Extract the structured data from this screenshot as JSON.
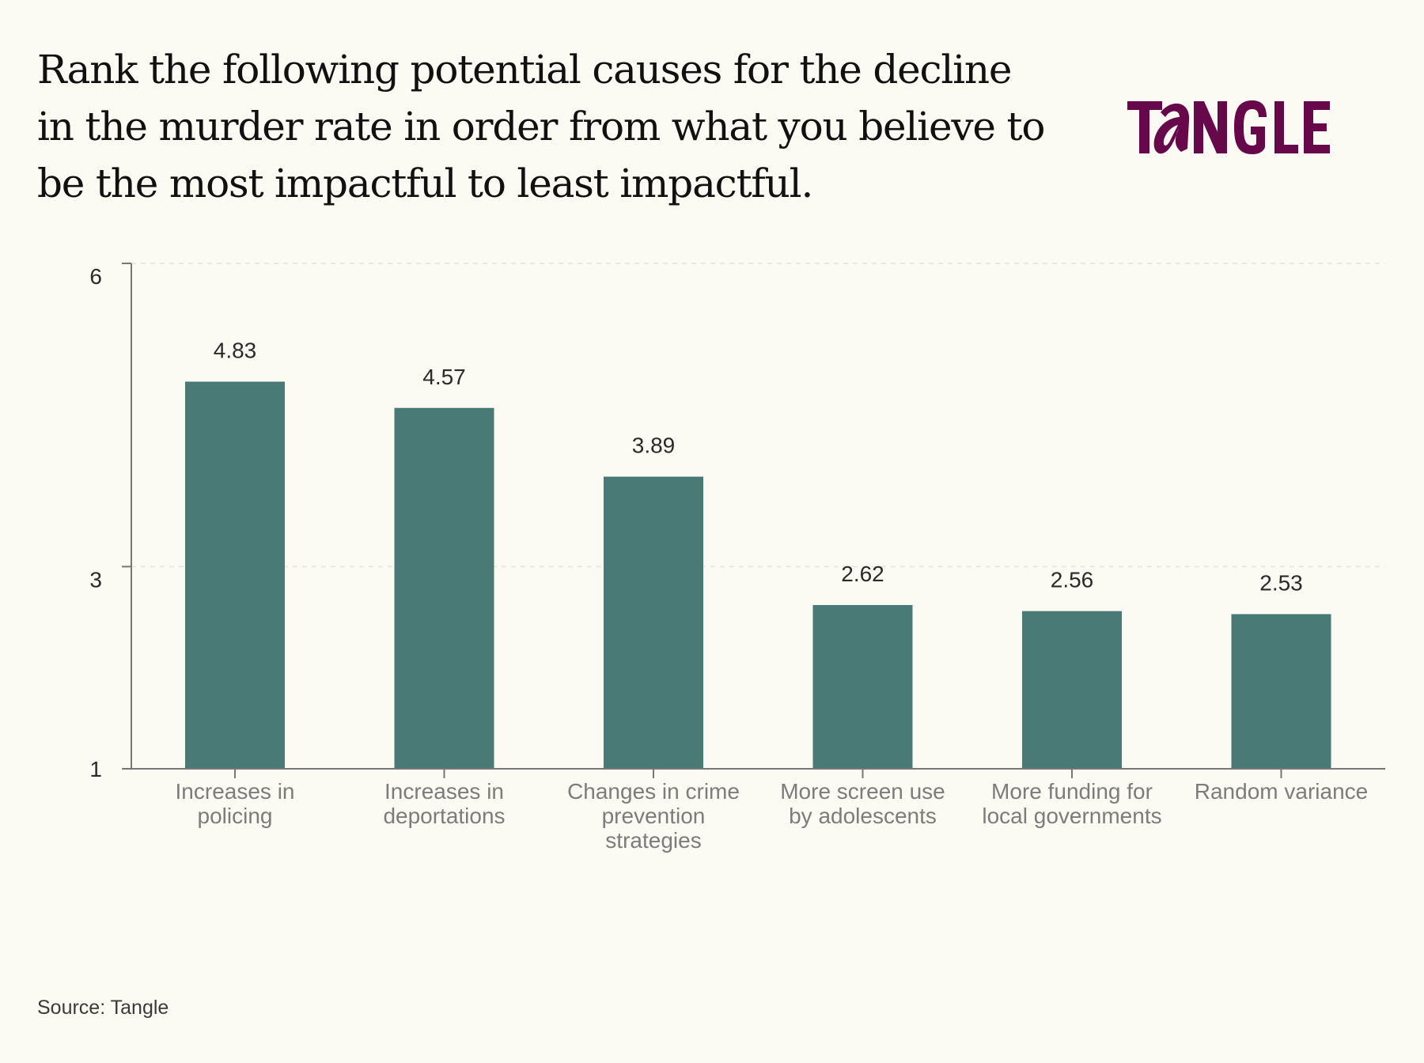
{
  "header": {
    "title_lines": [
      "Rank the following potential causes for the decline",
      "in the murder rate in order from what you believe to",
      "be the most impactful to least impactful."
    ],
    "logo_text": "TANGLE"
  },
  "footer": {
    "source": "Source: Tangle"
  },
  "colors": {
    "bar": "#4a7a75",
    "logo": "#66084a",
    "background": "#fbfaf3",
    "axis": "#777777"
  },
  "chart_data": {
    "type": "bar",
    "title": "Rank the following potential causes for the decline in the murder rate in order from what you believe to be the most impactful to least impactful.",
    "xlabel": "",
    "ylabel": "",
    "ylim": [
      1,
      6
    ],
    "yticks": [
      1,
      3,
      6
    ],
    "ytick_labels": [
      "1",
      "3",
      "6"
    ],
    "grid": true,
    "categories": [
      [
        "Increases in",
        "policing"
      ],
      [
        "Increases in",
        "deportations"
      ],
      [
        "Changes in crime",
        "prevention",
        "strategies"
      ],
      [
        "More screen use",
        "by adolescents"
      ],
      [
        "More funding for",
        "local governments"
      ],
      [
        "Random variance"
      ]
    ],
    "values": [
      4.83,
      4.57,
      3.89,
      2.62,
      2.56,
      2.53
    ],
    "value_labels": [
      "4.83",
      "4.57",
      "3.89",
      "2.62",
      "2.56",
      "2.53"
    ]
  }
}
